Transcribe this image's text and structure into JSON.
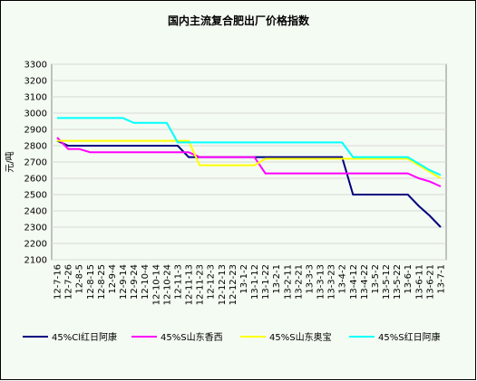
{
  "chart_data": {
    "type": "line",
    "title": "国内主流复合肥出厂价格指数",
    "y_label": "元/吨",
    "categories": [
      "12-7-16",
      "12-7-26",
      "12-8-5",
      "12-8-15",
      "12-8-25",
      "12-9-4",
      "12-9-14",
      "12-9-24",
      "12-10-4",
      "12-10-14",
      "12-10-24",
      "12-11-3",
      "12-11-13",
      "12-11-23",
      "12-12-3",
      "12-12-13",
      "12-12-23",
      "13-1-2",
      "13-1-12",
      "13-1-22",
      "13-2-1",
      "13-2-11",
      "13-2-21",
      "13-3-3",
      "13-3-13",
      "13-3-23",
      "13-4-2",
      "13-4-12",
      "13-4-22",
      "13-5-2",
      "13-5-12",
      "13-5-22",
      "13-6-1",
      "13-6-11",
      "13-6-21",
      "13-7-1"
    ],
    "series": [
      {
        "name": "45%Cl红日阿康",
        "color": "#000080",
        "values": [
          2830,
          2800,
          2800,
          2800,
          2800,
          2800,
          2800,
          2800,
          2800,
          2800,
          2800,
          2800,
          2730,
          2730,
          2730,
          2730,
          2730,
          2730,
          2730,
          2730,
          2730,
          2730,
          2730,
          2730,
          2730,
          2730,
          2730,
          2500,
          2500,
          2500,
          2500,
          2500,
          2500,
          2430,
          2370,
          2300
        ]
      },
      {
        "name": "45%S山东香西",
        "color": "#ff00ff",
        "values": [
          2850,
          2780,
          2780,
          2760,
          2760,
          2760,
          2760,
          2760,
          2760,
          2760,
          2760,
          2760,
          2760,
          2730,
          2730,
          2730,
          2730,
          2730,
          2730,
          2630,
          2630,
          2630,
          2630,
          2630,
          2630,
          2630,
          2630,
          2630,
          2630,
          2630,
          2630,
          2630,
          2630,
          2600,
          2580,
          2550
        ]
      },
      {
        "name": "45%S山东奥宝",
        "color": "#ffff00",
        "values": [
          2830,
          2830,
          2830,
          2830,
          2830,
          2830,
          2830,
          2830,
          2830,
          2830,
          2830,
          2830,
          2830,
          2680,
          2680,
          2680,
          2680,
          2680,
          2680,
          2720,
          2720,
          2720,
          2720,
          2720,
          2720,
          2720,
          2720,
          2720,
          2720,
          2720,
          2720,
          2720,
          2720,
          2680,
          2640,
          2600
        ]
      },
      {
        "name": "45%S红日阿康",
        "color": "#00ffff",
        "values": [
          2970,
          2970,
          2970,
          2970,
          2970,
          2970,
          2970,
          2940,
          2940,
          2940,
          2940,
          2820,
          2820,
          2820,
          2820,
          2820,
          2820,
          2820,
          2820,
          2820,
          2820,
          2820,
          2820,
          2820,
          2820,
          2820,
          2820,
          2730,
          2730,
          2730,
          2730,
          2730,
          2730,
          2690,
          2650,
          2620
        ]
      }
    ],
    "ylim": [
      2100,
      3300
    ],
    "yticks": [
      2100,
      2200,
      2300,
      2400,
      2500,
      2600,
      2700,
      2800,
      2900,
      3000,
      3100,
      3200,
      3300
    ],
    "grid": true
  }
}
